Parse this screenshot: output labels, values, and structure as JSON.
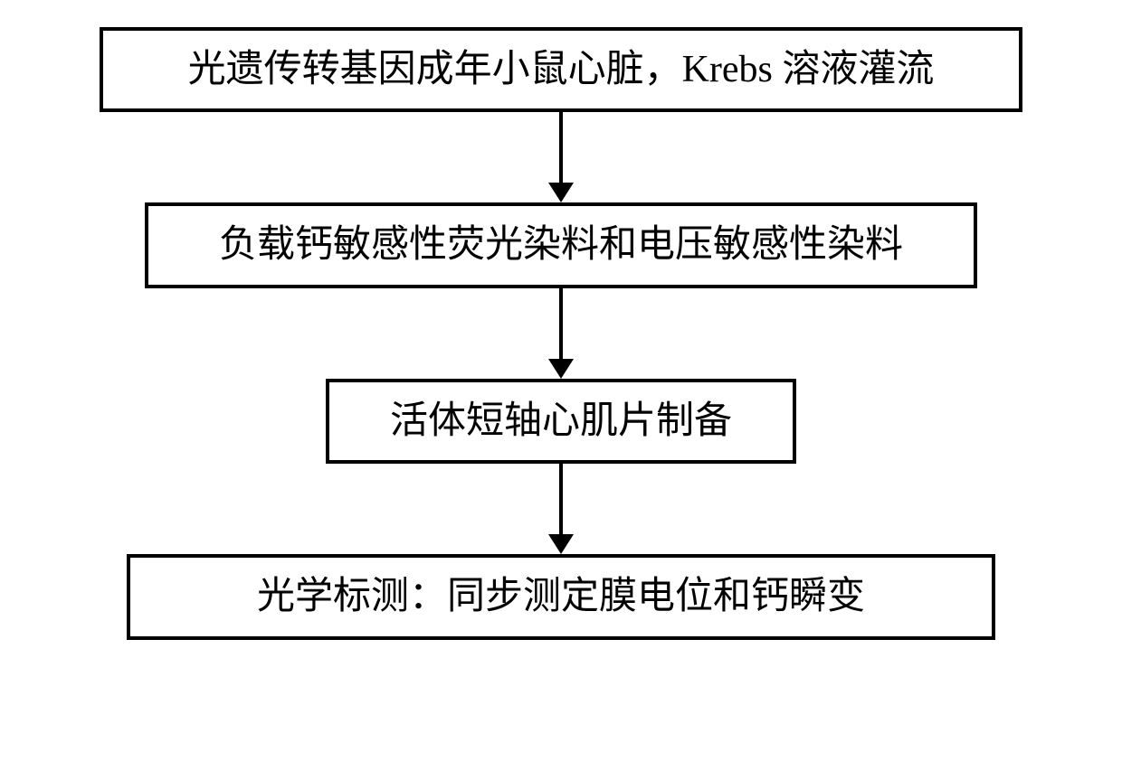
{
  "flowchart": {
    "type": "flowchart",
    "direction": "vertical",
    "nodes": [
      {
        "id": "step1",
        "text": "光遗传转基因成年小鼠心脏，Krebs 溶液灌流",
        "box_class": "box-1"
      },
      {
        "id": "step2",
        "text": "负载钙敏感性荧光染料和电压敏感性染料",
        "box_class": "box-2"
      },
      {
        "id": "step3",
        "text": "活体短轴心肌片制备",
        "box_class": "box-3"
      },
      {
        "id": "step4",
        "text": "光学标测：同步测定膜电位和钙瞬变",
        "box_class": "box-4"
      }
    ],
    "styling": {
      "background_color": "#ffffff",
      "border_color": "#000000",
      "border_width": 4,
      "text_color": "#000000",
      "font_size": 42,
      "font_family": "KaiTi",
      "arrow_color": "#000000",
      "arrow_line_width": 4,
      "arrow_head_size": 22,
      "arrow_gap_height": 100
    }
  }
}
